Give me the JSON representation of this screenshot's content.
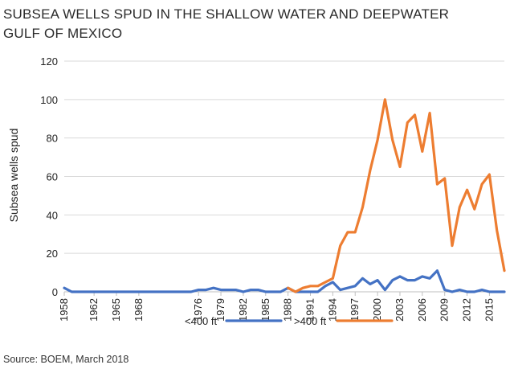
{
  "chart_data": {
    "type": "line",
    "title_line1": "SUBSEA WELLS SPUD IN THE SHALLOW WATER AND DEEPWATER",
    "title_line2": "GULF OF MEXICO",
    "ylabel": "Subsea wells spud",
    "xlabel": "",
    "ylim": [
      0,
      120
    ],
    "yticks": [
      "0",
      "20",
      "40",
      "60",
      "80",
      "100",
      "120"
    ],
    "x": [
      1958,
      1959,
      1960,
      1961,
      1962,
      1963,
      1964,
      1965,
      1966,
      1967,
      1968,
      1969,
      1970,
      1971,
      1972,
      1973,
      1974,
      1975,
      1976,
      1977,
      1978,
      1979,
      1980,
      1981,
      1982,
      1983,
      1984,
      1985,
      1986,
      1987,
      1988,
      1989,
      1990,
      1991,
      1992,
      1993,
      1994,
      1995,
      1996,
      1997,
      1998,
      1999,
      2000,
      2001,
      2002,
      2003,
      2004,
      2005,
      2006,
      2007,
      2008,
      2009,
      2010,
      2011,
      2012,
      2013,
      2014,
      2015,
      2016,
      2017
    ],
    "xticks": [
      "1958",
      "1962",
      "1965",
      "1968",
      "1976",
      "1979",
      "1982",
      "1985",
      "1988",
      "1991",
      "1994",
      "1997",
      "2000",
      "2003",
      "2006",
      "2009",
      "2012",
      "2015"
    ],
    "series": [
      {
        "name": "<400 ft",
        "color": "#4472c4",
        "values": [
          2,
          0,
          0,
          0,
          0,
          0,
          0,
          0,
          0,
          0,
          0,
          0,
          0,
          0,
          0,
          0,
          0,
          0,
          1,
          1,
          2,
          1,
          1,
          1,
          0,
          1,
          1,
          0,
          0,
          0,
          2,
          0,
          0,
          0,
          0,
          3,
          5,
          1,
          2,
          3,
          7,
          4,
          6,
          1,
          6,
          8,
          6,
          6,
          8,
          7,
          11,
          1,
          0,
          1,
          0,
          0,
          1,
          0,
          0,
          0
        ]
      },
      {
        "name": ">400 ft",
        "color": "#ed7d31",
        "values": [
          null,
          null,
          null,
          null,
          null,
          null,
          null,
          null,
          null,
          null,
          null,
          null,
          null,
          null,
          null,
          null,
          null,
          null,
          null,
          null,
          null,
          null,
          null,
          null,
          null,
          null,
          null,
          null,
          null,
          null,
          2,
          0,
          2,
          3,
          3,
          5,
          7,
          24,
          31,
          31,
          44,
          63,
          79,
          100,
          79,
          65,
          88,
          92,
          73,
          93,
          56,
          59,
          24,
          44,
          53,
          43,
          56,
          61,
          32,
          11
        ]
      }
    ],
    "legend": "bottom"
  },
  "source": "Source: BOEM, March 2018"
}
